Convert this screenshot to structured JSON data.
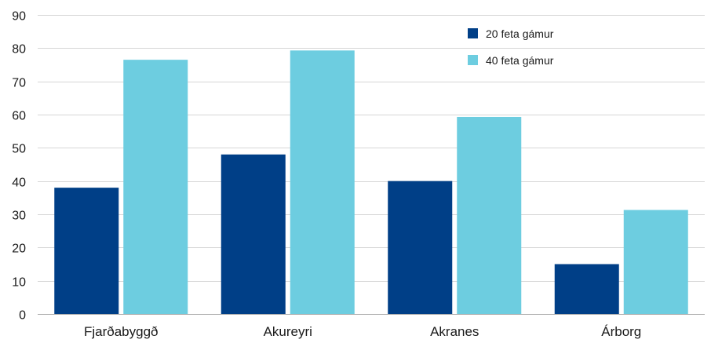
{
  "chart_data": {
    "type": "bar",
    "categories": [
      "Fjarðabyggð",
      "Akureyri",
      "Akranes",
      "Árborg"
    ],
    "series": [
      {
        "name": "20 feta gámur",
        "color": "#003f87",
        "values": [
          38,
          48,
          40,
          15
        ]
      },
      {
        "name": "40 feta gámur",
        "color": "#6dcde0",
        "values": [
          76.5,
          79.3,
          59.3,
          31.3
        ]
      }
    ],
    "title": "",
    "xlabel": "",
    "ylabel": "",
    "ylim": [
      0,
      90
    ],
    "yticks": [
      "0",
      "10",
      "20",
      "30",
      "40",
      "50",
      "60",
      "70",
      "80",
      "90"
    ],
    "grid": true,
    "legend_position": "top-right"
  }
}
